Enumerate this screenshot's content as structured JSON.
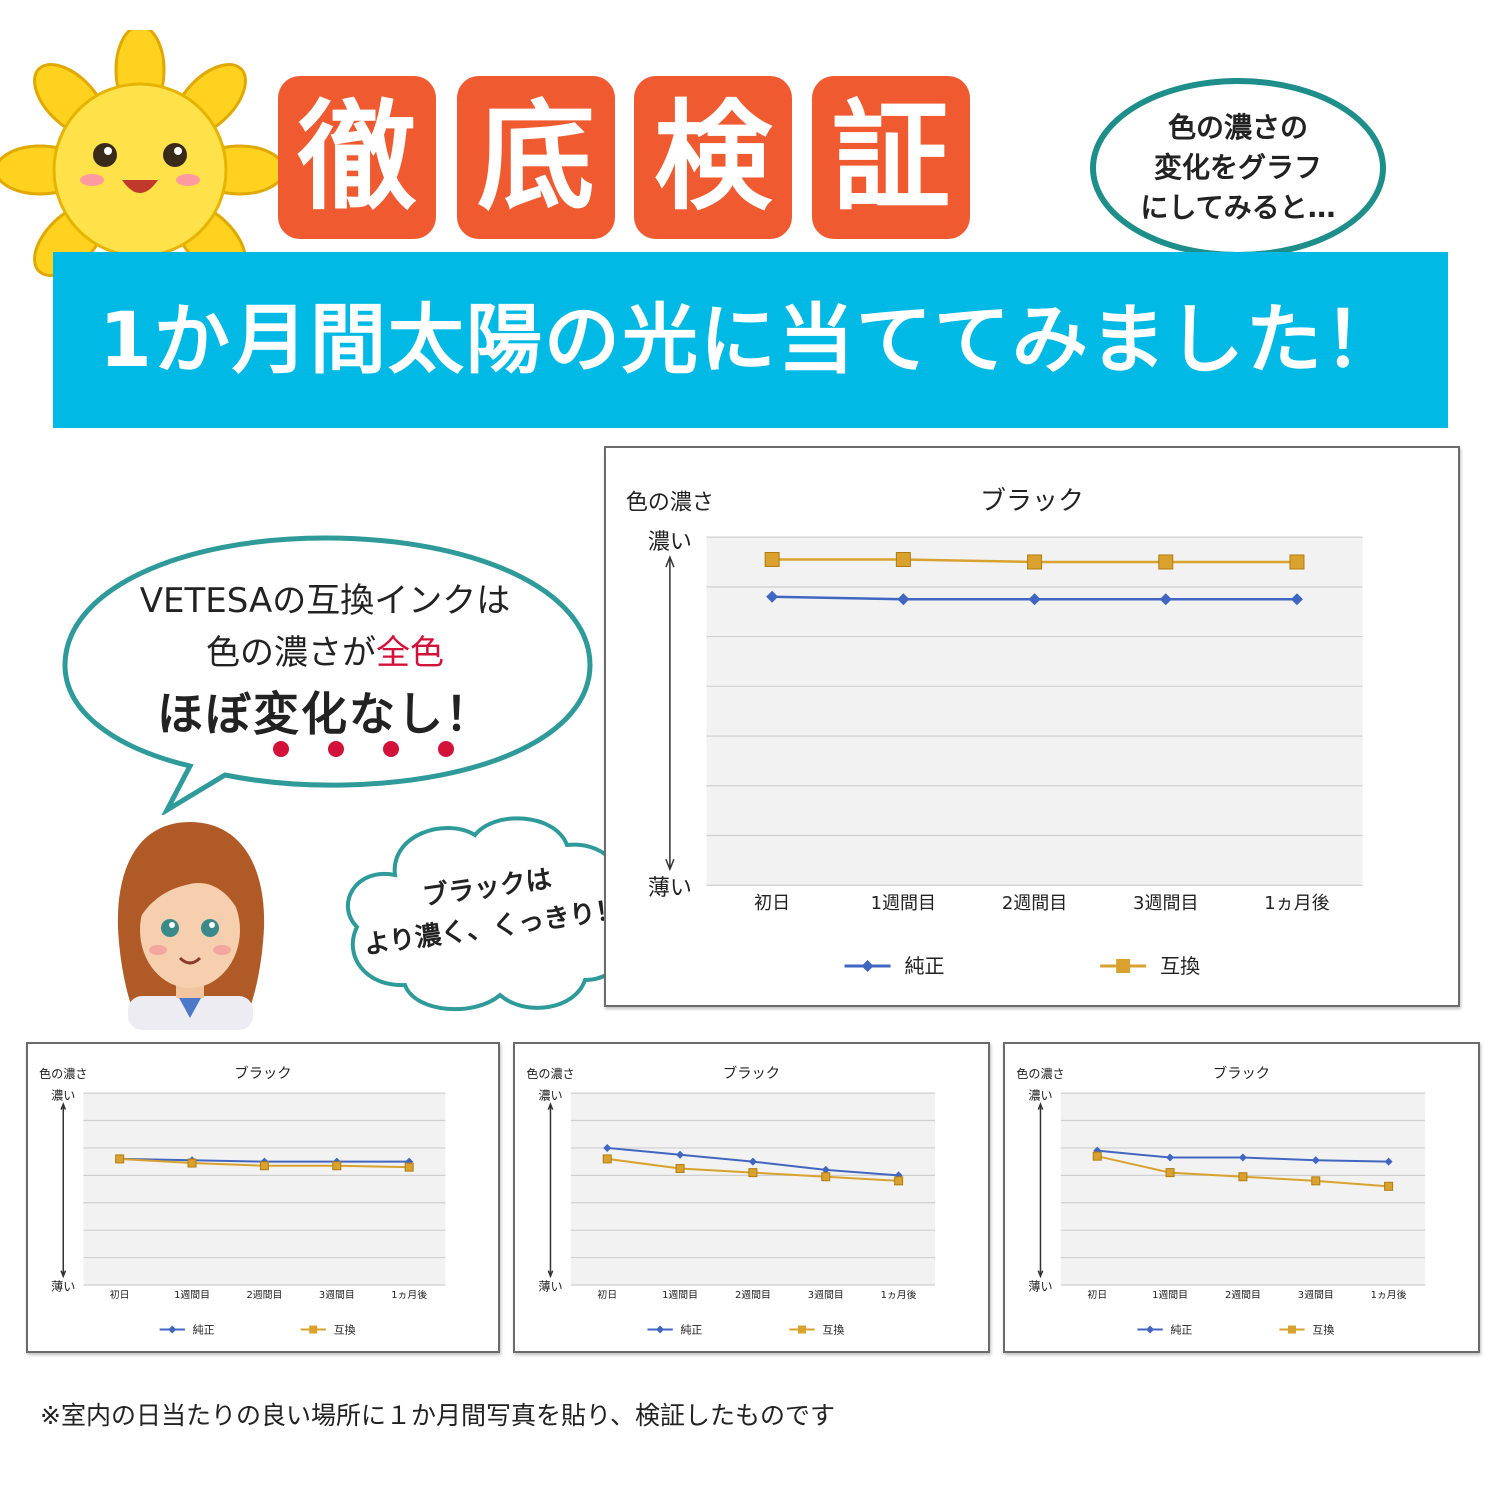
{
  "title_chars": [
    "徹",
    "底",
    "検",
    "証"
  ],
  "banner": "1か月間太陽の光に当ててみました！",
  "oval_bubble": [
    "色の濃さの",
    "変化をグラフ",
    "にしてみると…"
  ],
  "speech": {
    "line1": "VETESAの互換インクは",
    "line2_prefix": "色の濃さが",
    "line2_highlight": "全色",
    "line3": "ほぼ変化なし！"
  },
  "cloud": [
    "ブラックは",
    "より濃く、くっきり！"
  ],
  "footnote": "※室内の日当たりの良い場所に１か月間写真を貼り、検証したものです",
  "colors": {
    "title_tile": "#f05a30",
    "banner": "#00b9e4",
    "accent_teal": "#1e8e8a",
    "highlight_red": "#d3123a",
    "series_genuine": "#4166c1",
    "series_compatible": "#d9a22e"
  },
  "chart_data": [
    {
      "type": "line",
      "title": "ブラック",
      "ylabel": "色の濃さ",
      "y_top_label": "濃い",
      "y_bottom_label": "薄い",
      "categories": [
        "初日",
        "1週間目",
        "2週間目",
        "3週間目",
        "1ヵ月後"
      ],
      "ylim": [
        0,
        7
      ],
      "grid": true,
      "legend": "bottom",
      "series": [
        {
          "name": "純正",
          "values": [
            5.8,
            5.75,
            5.75,
            5.75,
            5.75
          ],
          "marker": "diamond",
          "color": "#4166c1"
        },
        {
          "name": "互換",
          "values": [
            6.55,
            6.55,
            6.5,
            6.5,
            6.5
          ],
          "marker": "square",
          "color": "#d9a22e"
        }
      ]
    },
    {
      "type": "line",
      "title": "ブラック",
      "ylabel": "色の濃さ",
      "y_top_label": "濃い",
      "y_bottom_label": "薄い",
      "categories": [
        "初日",
        "1週間目",
        "2週間目",
        "3週間目",
        "1ヵ月後"
      ],
      "ylim": [
        0,
        7
      ],
      "grid": true,
      "legend": "bottom",
      "series": [
        {
          "name": "純正",
          "values": [
            4.6,
            4.55,
            4.5,
            4.5,
            4.5
          ],
          "marker": "diamond",
          "color": "#4166c1"
        },
        {
          "name": "互換",
          "values": [
            4.6,
            4.45,
            4.35,
            4.35,
            4.3
          ],
          "marker": "square",
          "color": "#d9a22e"
        }
      ]
    },
    {
      "type": "line",
      "title": "ブラック",
      "ylabel": "色の濃さ",
      "y_top_label": "濃い",
      "y_bottom_label": "薄い",
      "categories": [
        "初日",
        "1週間目",
        "2週間目",
        "3週間目",
        "1ヵ月後"
      ],
      "ylim": [
        0,
        7
      ],
      "grid": true,
      "legend": "bottom",
      "series": [
        {
          "name": "純正",
          "values": [
            5.0,
            4.75,
            4.5,
            4.2,
            4.0
          ],
          "marker": "diamond",
          "color": "#4166c1"
        },
        {
          "name": "互換",
          "values": [
            4.6,
            4.25,
            4.1,
            3.95,
            3.8
          ],
          "marker": "square",
          "color": "#d9a22e"
        }
      ]
    },
    {
      "type": "line",
      "title": "ブラック",
      "ylabel": "色の濃さ",
      "y_top_label": "濃い",
      "y_bottom_label": "薄い",
      "categories": [
        "初日",
        "1週間目",
        "2週間目",
        "3週間目",
        "1ヵ月後"
      ],
      "ylim": [
        0,
        7
      ],
      "grid": true,
      "legend": "bottom",
      "series": [
        {
          "name": "純正",
          "values": [
            4.9,
            4.65,
            4.65,
            4.55,
            4.5
          ],
          "marker": "diamond",
          "color": "#4166c1"
        },
        {
          "name": "互換",
          "values": [
            4.7,
            4.1,
            3.95,
            3.8,
            3.6
          ],
          "marker": "square",
          "color": "#d9a22e"
        }
      ]
    }
  ]
}
